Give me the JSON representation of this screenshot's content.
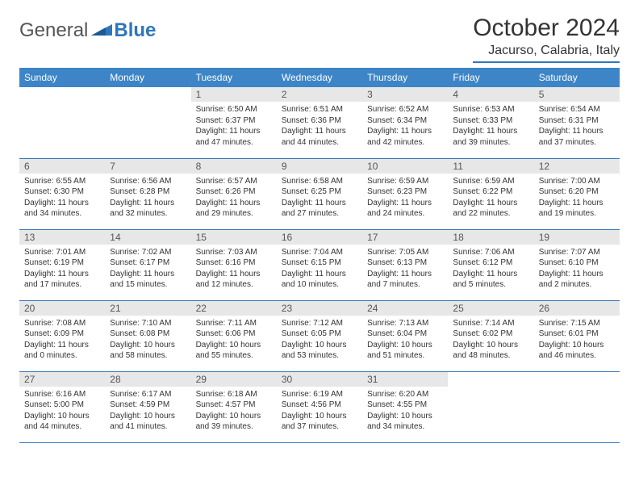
{
  "brand": {
    "text1": "General",
    "text2": "Blue"
  },
  "title": "October 2024",
  "location": "Jacurso, Calabria, Italy",
  "colors": {
    "header_bg": "#3d85c6",
    "header_text": "#ffffff",
    "daynum_bg": "#e7e7e7",
    "cell_border": "#2f77bb",
    "brand_gray": "#555555",
    "brand_blue": "#2f77bb",
    "text": "#333333"
  },
  "weekdays": [
    "Sunday",
    "Monday",
    "Tuesday",
    "Wednesday",
    "Thursday",
    "Friday",
    "Saturday"
  ],
  "weeks": [
    [
      {
        "day": "",
        "sunrise": "",
        "sunset": "",
        "daylight": ""
      },
      {
        "day": "",
        "sunrise": "",
        "sunset": "",
        "daylight": ""
      },
      {
        "day": "1",
        "sunrise": "Sunrise: 6:50 AM",
        "sunset": "Sunset: 6:37 PM",
        "daylight": "Daylight: 11 hours and 47 minutes."
      },
      {
        "day": "2",
        "sunrise": "Sunrise: 6:51 AM",
        "sunset": "Sunset: 6:36 PM",
        "daylight": "Daylight: 11 hours and 44 minutes."
      },
      {
        "day": "3",
        "sunrise": "Sunrise: 6:52 AM",
        "sunset": "Sunset: 6:34 PM",
        "daylight": "Daylight: 11 hours and 42 minutes."
      },
      {
        "day": "4",
        "sunrise": "Sunrise: 6:53 AM",
        "sunset": "Sunset: 6:33 PM",
        "daylight": "Daylight: 11 hours and 39 minutes."
      },
      {
        "day": "5",
        "sunrise": "Sunrise: 6:54 AM",
        "sunset": "Sunset: 6:31 PM",
        "daylight": "Daylight: 11 hours and 37 minutes."
      }
    ],
    [
      {
        "day": "6",
        "sunrise": "Sunrise: 6:55 AM",
        "sunset": "Sunset: 6:30 PM",
        "daylight": "Daylight: 11 hours and 34 minutes."
      },
      {
        "day": "7",
        "sunrise": "Sunrise: 6:56 AM",
        "sunset": "Sunset: 6:28 PM",
        "daylight": "Daylight: 11 hours and 32 minutes."
      },
      {
        "day": "8",
        "sunrise": "Sunrise: 6:57 AM",
        "sunset": "Sunset: 6:26 PM",
        "daylight": "Daylight: 11 hours and 29 minutes."
      },
      {
        "day": "9",
        "sunrise": "Sunrise: 6:58 AM",
        "sunset": "Sunset: 6:25 PM",
        "daylight": "Daylight: 11 hours and 27 minutes."
      },
      {
        "day": "10",
        "sunrise": "Sunrise: 6:59 AM",
        "sunset": "Sunset: 6:23 PM",
        "daylight": "Daylight: 11 hours and 24 minutes."
      },
      {
        "day": "11",
        "sunrise": "Sunrise: 6:59 AM",
        "sunset": "Sunset: 6:22 PM",
        "daylight": "Daylight: 11 hours and 22 minutes."
      },
      {
        "day": "12",
        "sunrise": "Sunrise: 7:00 AM",
        "sunset": "Sunset: 6:20 PM",
        "daylight": "Daylight: 11 hours and 19 minutes."
      }
    ],
    [
      {
        "day": "13",
        "sunrise": "Sunrise: 7:01 AM",
        "sunset": "Sunset: 6:19 PM",
        "daylight": "Daylight: 11 hours and 17 minutes."
      },
      {
        "day": "14",
        "sunrise": "Sunrise: 7:02 AM",
        "sunset": "Sunset: 6:17 PM",
        "daylight": "Daylight: 11 hours and 15 minutes."
      },
      {
        "day": "15",
        "sunrise": "Sunrise: 7:03 AM",
        "sunset": "Sunset: 6:16 PM",
        "daylight": "Daylight: 11 hours and 12 minutes."
      },
      {
        "day": "16",
        "sunrise": "Sunrise: 7:04 AM",
        "sunset": "Sunset: 6:15 PM",
        "daylight": "Daylight: 11 hours and 10 minutes."
      },
      {
        "day": "17",
        "sunrise": "Sunrise: 7:05 AM",
        "sunset": "Sunset: 6:13 PM",
        "daylight": "Daylight: 11 hours and 7 minutes."
      },
      {
        "day": "18",
        "sunrise": "Sunrise: 7:06 AM",
        "sunset": "Sunset: 6:12 PM",
        "daylight": "Daylight: 11 hours and 5 minutes."
      },
      {
        "day": "19",
        "sunrise": "Sunrise: 7:07 AM",
        "sunset": "Sunset: 6:10 PM",
        "daylight": "Daylight: 11 hours and 2 minutes."
      }
    ],
    [
      {
        "day": "20",
        "sunrise": "Sunrise: 7:08 AM",
        "sunset": "Sunset: 6:09 PM",
        "daylight": "Daylight: 11 hours and 0 minutes."
      },
      {
        "day": "21",
        "sunrise": "Sunrise: 7:10 AM",
        "sunset": "Sunset: 6:08 PM",
        "daylight": "Daylight: 10 hours and 58 minutes."
      },
      {
        "day": "22",
        "sunrise": "Sunrise: 7:11 AM",
        "sunset": "Sunset: 6:06 PM",
        "daylight": "Daylight: 10 hours and 55 minutes."
      },
      {
        "day": "23",
        "sunrise": "Sunrise: 7:12 AM",
        "sunset": "Sunset: 6:05 PM",
        "daylight": "Daylight: 10 hours and 53 minutes."
      },
      {
        "day": "24",
        "sunrise": "Sunrise: 7:13 AM",
        "sunset": "Sunset: 6:04 PM",
        "daylight": "Daylight: 10 hours and 51 minutes."
      },
      {
        "day": "25",
        "sunrise": "Sunrise: 7:14 AM",
        "sunset": "Sunset: 6:02 PM",
        "daylight": "Daylight: 10 hours and 48 minutes."
      },
      {
        "day": "26",
        "sunrise": "Sunrise: 7:15 AM",
        "sunset": "Sunset: 6:01 PM",
        "daylight": "Daylight: 10 hours and 46 minutes."
      }
    ],
    [
      {
        "day": "27",
        "sunrise": "Sunrise: 6:16 AM",
        "sunset": "Sunset: 5:00 PM",
        "daylight": "Daylight: 10 hours and 44 minutes."
      },
      {
        "day": "28",
        "sunrise": "Sunrise: 6:17 AM",
        "sunset": "Sunset: 4:59 PM",
        "daylight": "Daylight: 10 hours and 41 minutes."
      },
      {
        "day": "29",
        "sunrise": "Sunrise: 6:18 AM",
        "sunset": "Sunset: 4:57 PM",
        "daylight": "Daylight: 10 hours and 39 minutes."
      },
      {
        "day": "30",
        "sunrise": "Sunrise: 6:19 AM",
        "sunset": "Sunset: 4:56 PM",
        "daylight": "Daylight: 10 hours and 37 minutes."
      },
      {
        "day": "31",
        "sunrise": "Sunrise: 6:20 AM",
        "sunset": "Sunset: 4:55 PM",
        "daylight": "Daylight: 10 hours and 34 minutes."
      },
      {
        "day": "",
        "sunrise": "",
        "sunset": "",
        "daylight": ""
      },
      {
        "day": "",
        "sunrise": "",
        "sunset": "",
        "daylight": ""
      }
    ]
  ]
}
